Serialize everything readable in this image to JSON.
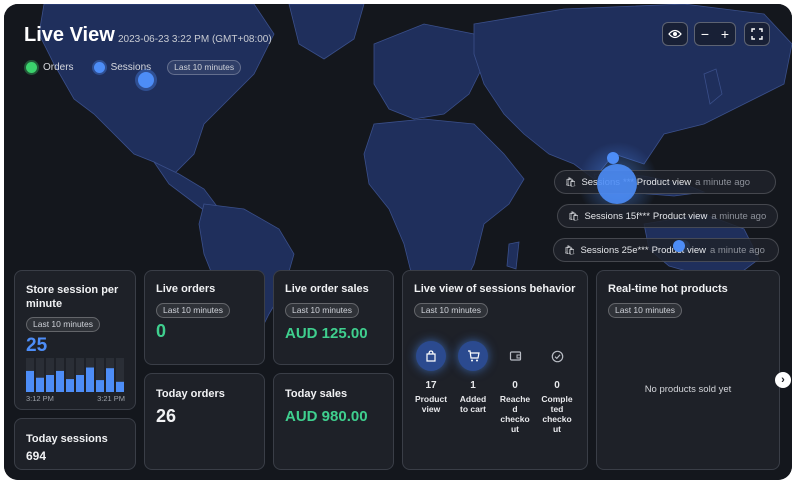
{
  "header": {
    "title": "Live View",
    "timestamp": "2023-06-23 3:22 PM (GMT+08:00)",
    "legend": {
      "orders_label": "Orders",
      "sessions_label": "Sessions",
      "range_pill": "Last 10 minutes"
    }
  },
  "controls": {
    "zoom_out": "−",
    "zoom_in": "+"
  },
  "session_feed": [
    {
      "label": "Sessions",
      "product": "*** Product view",
      "time": "a minute ago"
    },
    {
      "label": "Sessions 15f***",
      "product": "Product view",
      "time": "a minute ago"
    },
    {
      "label": "Sessions 25e***",
      "product": "Product view",
      "time": "a minute ago"
    }
  ],
  "cards": {
    "store_session": {
      "title_line1": "Store session per",
      "title_line2": "minute",
      "pill": "Last 10 minutes",
      "value": "25",
      "axis_start": "3:12 PM",
      "axis_end": "3:21 PM",
      "bars": [
        0.62,
        0.42,
        0.5,
        0.62,
        0.38,
        0.5,
        0.72,
        0.35,
        0.7,
        0.3
      ]
    },
    "live_orders": {
      "title": "Live orders",
      "pill": "Last 10 minutes",
      "value": "0"
    },
    "live_order_sales": {
      "title": "Live order sales",
      "pill": "Last 10 minutes",
      "value": "AUD 125.00"
    },
    "today_orders": {
      "title": "Today orders",
      "value": "26"
    },
    "today_sales": {
      "title": "Today sales",
      "value": "AUD 980.00"
    },
    "today_sessions": {
      "title": "Today sessions",
      "value": "694"
    },
    "behavior": {
      "title": "Live view of sessions behavior",
      "pill": "Last 10 minutes",
      "steps": [
        {
          "count": "17",
          "line1": "Product",
          "line2": "view",
          "line3": "",
          "line4": ""
        },
        {
          "count": "1",
          "line1": "Added",
          "line2": "to cart",
          "line3": "",
          "line4": ""
        },
        {
          "count": "0",
          "line1": "Reache",
          "line2": "d",
          "line3": "checko",
          "line4": "ut"
        },
        {
          "count": "0",
          "line1": "Comple",
          "line2": "ted",
          "line3": "checko",
          "line4": "ut"
        }
      ]
    },
    "hot_products": {
      "title": "Real-time hot products",
      "pill": "Last 10 minutes",
      "empty": "No products sold yet"
    }
  },
  "colors": {
    "accent_blue": "#4d8df7",
    "accent_green": "#3fcf8e",
    "card_bg": "#1e2128"
  }
}
